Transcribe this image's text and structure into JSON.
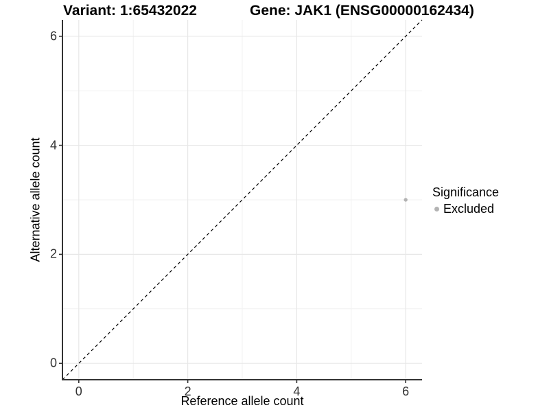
{
  "header": {
    "title_left": "Variant: 1:65432022",
    "title_right": "Gene: JAK1 (ENSG00000162434)"
  },
  "chart_data": {
    "type": "scatter",
    "xlabel": "Reference allele count",
    "ylabel": "Alternative allele count",
    "xlim": [
      -0.3,
      6.3
    ],
    "ylim": [
      -0.3,
      6.3
    ],
    "x_ticks": [
      0,
      2,
      4,
      6
    ],
    "y_ticks": [
      0,
      2,
      4,
      6
    ],
    "x_minor_ticks": [
      1,
      3,
      5
    ],
    "y_minor_ticks": [
      1,
      3,
      5
    ],
    "grid": true,
    "series": [
      {
        "name": "Excluded",
        "color": "#b3b3b3",
        "points": [
          {
            "x": 6,
            "y": 3
          }
        ]
      }
    ],
    "reference_line": {
      "kind": "identity",
      "style": "dashed",
      "color": "#000000"
    },
    "legend_position": "right"
  },
  "legend": {
    "title": "Significance",
    "items": [
      {
        "label": "Excluded",
        "color": "#b3b3b3"
      }
    ]
  },
  "colors": {
    "background": "#ffffff",
    "grid_major": "#e7e7e7",
    "grid_minor": "#f1f1f1",
    "axis_line": "#333333",
    "tick_mark": "#333333",
    "tick_label": "#333333",
    "point": "#b3b3b3"
  }
}
